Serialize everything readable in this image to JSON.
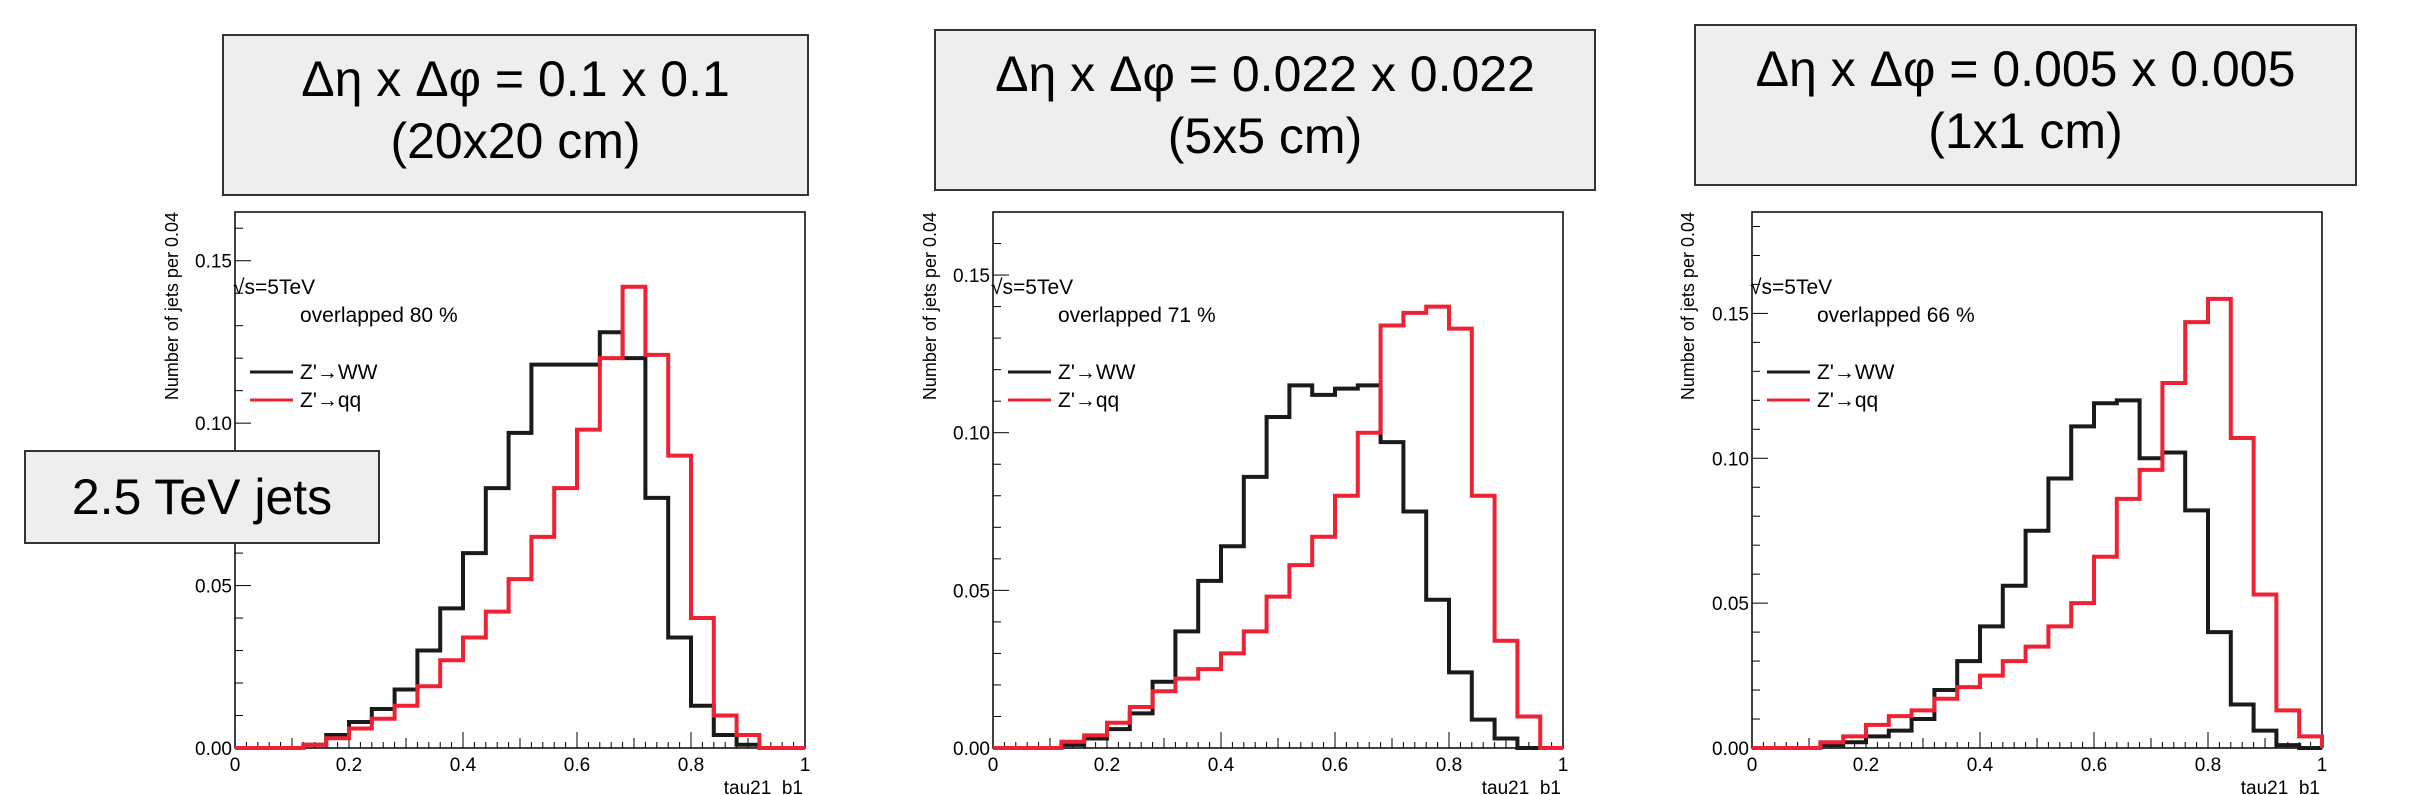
{
  "captions": [
    {
      "line1": "Δη x Δφ = 0.1 x 0.1",
      "line2": "(20x20 cm)"
    },
    {
      "line1": "Δη x Δφ = 0.022 x 0.022",
      "line2": "(5x5 cm)"
    },
    {
      "line1": "Δη x Δφ = 0.005 x 0.005",
      "line2": "(1x1 cm)"
    }
  ],
  "jets_label": "2.5 TeV jets",
  "colors": {
    "ww": "#1a1a1a",
    "qq": "#ee2233"
  },
  "chart_data": [
    {
      "type": "line",
      "xlabel": "tau21_b1",
      "ylabel": "Number of jets per 0.04",
      "xlim": [
        0,
        1
      ],
      "ylim": [
        0,
        0.165
      ],
      "yticks": [
        0.0,
        0.05,
        0.1,
        0.15
      ],
      "yticks_labels": [
        "0.00",
        "0.05",
        "0.10",
        "0.15"
      ],
      "xticks": [
        0,
        0.2,
        0.4,
        0.6,
        0.8,
        1
      ],
      "xticks_labels": [
        "0",
        "0.2",
        "0.4",
        "0.6",
        "0.8",
        "1"
      ],
      "energy": "√s=5TeV",
      "overlap": "overlapped 80 %",
      "bin_edges": [
        0,
        0.04,
        0.08,
        0.12,
        0.16,
        0.2,
        0.24,
        0.28,
        0.32,
        0.36,
        0.4,
        0.44,
        0.48,
        0.52,
        0.56,
        0.6,
        0.64,
        0.68,
        0.72,
        0.76,
        0.8,
        0.84,
        0.88,
        0.92,
        0.96,
        1.0
      ],
      "series": [
        {
          "name": "Z'→WW",
          "values": [
            0,
            0,
            0,
            0.001,
            0.004,
            0.008,
            0.012,
            0.018,
            0.03,
            0.043,
            0.06,
            0.08,
            0.097,
            0.118,
            0.118,
            0.118,
            0.128,
            0.12,
            0.077,
            0.034,
            0.013,
            0.004,
            0.001,
            0,
            0
          ]
        },
        {
          "name": "Z'→qq",
          "values": [
            0,
            0,
            0,
            0.001,
            0.003,
            0.006,
            0.009,
            0.013,
            0.019,
            0.027,
            0.034,
            0.042,
            0.052,
            0.065,
            0.08,
            0.098,
            0.12,
            0.142,
            0.121,
            0.09,
            0.04,
            0.01,
            0.004,
            0,
            0
          ]
        }
      ]
    },
    {
      "type": "line",
      "xlabel": "tau21_b1",
      "ylabel": "Number of jets per 0.04",
      "xlim": [
        0,
        1
      ],
      "ylim": [
        0,
        0.17
      ],
      "yticks": [
        0.0,
        0.05,
        0.1,
        0.15
      ],
      "yticks_labels": [
        "0.00",
        "0.05",
        "0.10",
        "0.15"
      ],
      "xticks": [
        0,
        0.2,
        0.4,
        0.6,
        0.8,
        1
      ],
      "xticks_labels": [
        "0",
        "0.2",
        "0.4",
        "0.6",
        "0.8",
        "1"
      ],
      "energy": "√s=5TeV",
      "overlap": "overlapped 71 %",
      "bin_edges": [
        0,
        0.04,
        0.08,
        0.12,
        0.16,
        0.2,
        0.24,
        0.28,
        0.32,
        0.36,
        0.4,
        0.44,
        0.48,
        0.52,
        0.56,
        0.6,
        0.64,
        0.68,
        0.72,
        0.76,
        0.8,
        0.84,
        0.88,
        0.92,
        0.96,
        1.0
      ],
      "series": [
        {
          "name": "Z'→WW",
          "values": [
            0,
            0,
            0,
            0.001,
            0.003,
            0.006,
            0.011,
            0.021,
            0.037,
            0.053,
            0.064,
            0.086,
            0.105,
            0.115,
            0.112,
            0.114,
            0.115,
            0.097,
            0.075,
            0.047,
            0.024,
            0.009,
            0.003,
            0,
            0
          ]
        },
        {
          "name": "Z'→qq",
          "values": [
            0,
            0,
            0,
            0.002,
            0.004,
            0.008,
            0.013,
            0.018,
            0.022,
            0.025,
            0.03,
            0.037,
            0.048,
            0.058,
            0.067,
            0.08,
            0.1,
            0.134,
            0.138,
            0.14,
            0.133,
            0.08,
            0.034,
            0.01,
            0
          ]
        }
      ]
    },
    {
      "type": "line",
      "xlabel": "tau21_b1",
      "ylabel": "Number of jets per 0.04",
      "xlim": [
        0,
        1
      ],
      "ylim": [
        0,
        0.185
      ],
      "yticks": [
        0.0,
        0.05,
        0.1,
        0.15
      ],
      "yticks_labels": [
        "0.00",
        "0.05",
        "0.10",
        "0.15"
      ],
      "xticks": [
        0,
        0.2,
        0.4,
        0.6,
        0.8,
        1
      ],
      "xticks_labels": [
        "0",
        "0.2",
        "0.4",
        "0.6",
        "0.8",
        "1"
      ],
      "energy": "√s=5TeV",
      "overlap": "overlapped 66 %",
      "bin_edges": [
        0,
        0.04,
        0.08,
        0.12,
        0.16,
        0.2,
        0.24,
        0.28,
        0.32,
        0.36,
        0.4,
        0.44,
        0.48,
        0.52,
        0.56,
        0.6,
        0.64,
        0.68,
        0.72,
        0.76,
        0.8,
        0.84,
        0.88,
        0.92,
        0.96,
        1.0
      ],
      "series": [
        {
          "name": "Z'→WW",
          "values": [
            0,
            0,
            0,
            0.001,
            0.002,
            0.004,
            0.006,
            0.01,
            0.02,
            0.03,
            0.042,
            0.056,
            0.075,
            0.093,
            0.111,
            0.119,
            0.12,
            0.1,
            0.102,
            0.082,
            0.04,
            0.015,
            0.006,
            0.001,
            0
          ]
        },
        {
          "name": "Z'→qq",
          "values": [
            0,
            0,
            0,
            0.002,
            0.004,
            0.008,
            0.011,
            0.013,
            0.017,
            0.021,
            0.025,
            0.03,
            0.035,
            0.042,
            0.05,
            0.066,
            0.086,
            0.096,
            0.126,
            0.147,
            0.155,
            0.107,
            0.053,
            0.013,
            0.004
          ]
        }
      ]
    }
  ]
}
